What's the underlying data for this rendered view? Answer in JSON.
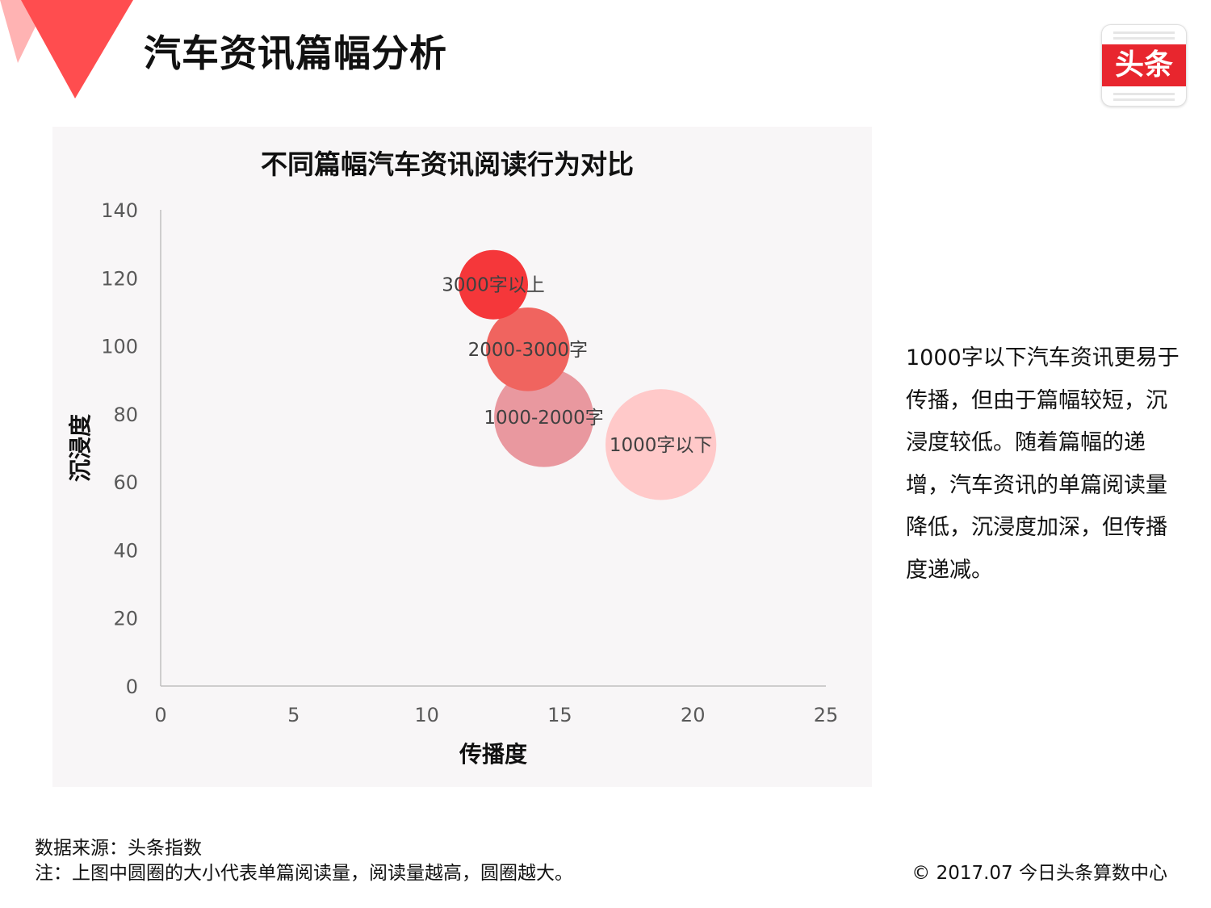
{
  "header": {
    "title": "汽车资讯篇幅分析",
    "logo_text": "头条",
    "accent_color": "#ff4d4f"
  },
  "chart_data": {
    "type": "bubble",
    "title": "不同篇幅汽车资讯阅读行为对比",
    "xlabel": "传播度",
    "ylabel": "沉浸度",
    "xlim": [
      0,
      25
    ],
    "ylim": [
      0,
      140
    ],
    "x_ticks": [
      0,
      5,
      10,
      15,
      20,
      25
    ],
    "y_ticks": [
      0,
      20,
      40,
      60,
      80,
      100,
      120,
      140
    ],
    "grid": false,
    "legend": "none",
    "size_meaning": "单篇阅读量",
    "points": [
      {
        "label": "3000字以上",
        "x": 12.5,
        "y": 118,
        "size": 1.0,
        "color": "#f5373a"
      },
      {
        "label": "2000-3000字",
        "x": 13.8,
        "y": 99,
        "size": 1.45,
        "color": "#f0645f"
      },
      {
        "label": "1000-2000字",
        "x": 14.4,
        "y": 79,
        "size": 2.05,
        "color": "#e9989f"
      },
      {
        "label": "1000字以下",
        "x": 18.8,
        "y": 71,
        "size": 2.55,
        "color": "#ffc9c9"
      }
    ]
  },
  "side_note": "1000字以下汽车资讯更易于传播，但由于篇幅较短，沉浸度较低。随着篇幅的递增，汽车资讯的单篇阅读量降低，沉浸度加深，但传播度递减。",
  "footer": {
    "source": "数据来源：头条指数",
    "note": "注：上图中圆圈的大小代表单篇阅读量，阅读量越高，圆圈越大。",
    "copyright": "© 2017.07 今日头条算数中心"
  }
}
